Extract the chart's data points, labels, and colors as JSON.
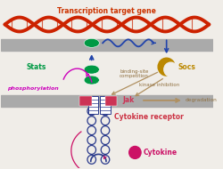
{
  "bg_color": "#f0ede8",
  "membrane_color": "#aaaaaa",
  "rec_color": "#2a3a8c",
  "jak_color": "#cc3355",
  "cytokine_color": "#cc1166",
  "cytokine_label": "Cytokine",
  "cytokine_label_color": "#cc1166",
  "cytokine_receptor_label": "Cytokine receptor",
  "cytokine_receptor_color": "#cc3344",
  "phosphorylation_label": "phosphorylation",
  "phosphorylation_color": "#cc00bb",
  "stats_label": "Stats",
  "stats_color": "#009944",
  "socs_label": "Socs",
  "socs_color": "#bb8800",
  "jak_label": "Jak",
  "jak_label_color": "#cc3355",
  "degradation_label": "degradation",
  "kinase_label": "kinase inhibition",
  "binding_label": "binding-site\ncompetition",
  "arrow_color": "#b09060",
  "transcription_label": "Transcription target gene",
  "transcription_color": "#cc3300",
  "dna_color1": "#cc2200",
  "dna_color2": "#aa1100",
  "blue_arrow_color": "#2244aa"
}
